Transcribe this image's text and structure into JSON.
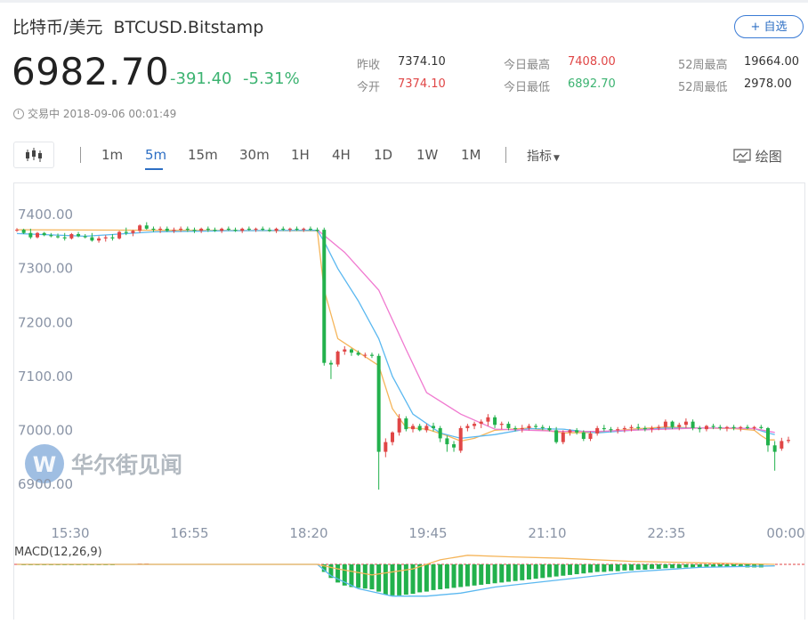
{
  "header": {
    "name": "比特币/美元",
    "symbol": "BTCUSD.Bitstamp",
    "add_label": "+ 自选"
  },
  "quote": {
    "price": "6982.70",
    "change": "-391.40",
    "change_pct": "-5.31%",
    "prev_close_label": "昨收",
    "prev_close": "7374.10",
    "open_label": "今开",
    "open": "7374.10",
    "high_label": "今日最高",
    "high": "7408.00",
    "low_label": "今日最低",
    "low": "6892.70",
    "w52_high_label": "52周最高",
    "w52_high": "19664.00",
    "w52_low_label": "52周最低",
    "w52_low": "2978.00",
    "status": "交易中 2018-09-06 00:01:49"
  },
  "toolbar": {
    "timeframes": [
      "1m",
      "5m",
      "15m",
      "30m",
      "1H",
      "4H",
      "1D",
      "1W",
      "1M"
    ],
    "active": "5m",
    "indicator_label": "指标",
    "draw_label": "绘图"
  },
  "colors": {
    "up": "#e04646",
    "down": "#22b14c",
    "accent": "#2d6fc4",
    "ma1": "#f5b55a",
    "ma2": "#5bb8f0",
    "ma3": "#f07ad0"
  },
  "watermark": "华尔街见闻",
  "chart_data": {
    "type": "candlestick",
    "x_tick_labels": [
      "15:30",
      "16:55",
      "18:20",
      "19:45",
      "21:10",
      "22:35",
      "00:00"
    ],
    "y_tick_labels": [
      "7400.00",
      "7300.00",
      "7200.00",
      "7100.00",
      "7000.00",
      "6900.00"
    ],
    "ylim": [
      6880,
      7430
    ],
    "ohlc": [
      [
        7371,
        7375,
        7368,
        7372
      ],
      [
        7372,
        7374,
        7364,
        7366
      ],
      [
        7366,
        7374,
        7355,
        7358
      ],
      [
        7358,
        7368,
        7356,
        7366
      ],
      [
        7366,
        7368,
        7360,
        7362
      ],
      [
        7362,
        7366,
        7358,
        7360
      ],
      [
        7360,
        7365,
        7356,
        7358
      ],
      [
        7358,
        7366,
        7352,
        7356
      ],
      [
        7356,
        7366,
        7354,
        7364
      ],
      [
        7364,
        7368,
        7358,
        7360
      ],
      [
        7360,
        7364,
        7356,
        7358
      ],
      [
        7358,
        7366,
        7350,
        7352
      ],
      [
        7352,
        7360,
        7348,
        7356
      ],
      [
        7356,
        7362,
        7350,
        7358
      ],
      [
        7358,
        7364,
        7352,
        7356
      ],
      [
        7356,
        7370,
        7354,
        7368
      ],
      [
        7368,
        7376,
        7362,
        7366
      ],
      [
        7366,
        7372,
        7360,
        7370
      ],
      [
        7370,
        7382,
        7366,
        7380
      ],
      [
        7380,
        7386,
        7372,
        7374
      ],
      [
        7374,
        7378,
        7368,
        7372
      ],
      [
        7372,
        7378,
        7366,
        7374
      ],
      [
        7374,
        7378,
        7368,
        7370
      ],
      [
        7370,
        7376,
        7366,
        7372
      ],
      [
        7372,
        7378,
        7368,
        7374
      ],
      [
        7374,
        7378,
        7368,
        7372
      ],
      [
        7372,
        7376,
        7366,
        7370
      ],
      [
        7370,
        7376,
        7366,
        7374
      ],
      [
        7374,
        7378,
        7368,
        7372
      ],
      [
        7372,
        7376,
        7368,
        7370
      ],
      [
        7370,
        7376,
        7366,
        7374
      ],
      [
        7374,
        7378,
        7370,
        7372
      ],
      [
        7372,
        7376,
        7368,
        7370
      ],
      [
        7370,
        7376,
        7366,
        7374
      ],
      [
        7374,
        7378,
        7370,
        7372
      ],
      [
        7372,
        7376,
        7368,
        7374
      ],
      [
        7374,
        7378,
        7370,
        7372
      ],
      [
        7372,
        7376,
        7368,
        7370
      ],
      [
        7370,
        7376,
        7366,
        7374
      ],
      [
        7374,
        7378,
        7370,
        7372
      ],
      [
        7372,
        7376,
        7368,
        7374
      ],
      [
        7374,
        7378,
        7370,
        7372
      ],
      [
        7372,
        7376,
        7368,
        7374
      ],
      [
        7374,
        7378,
        7370,
        7372
      ],
      [
        7372,
        7376,
        7368,
        7370
      ],
      [
        7372,
        7376,
        7120,
        7125
      ],
      [
        7125,
        7130,
        7095,
        7122
      ],
      [
        7122,
        7148,
        7118,
        7146
      ],
      [
        7146,
        7156,
        7140,
        7150
      ],
      [
        7150,
        7152,
        7138,
        7144
      ],
      [
        7144,
        7148,
        7138,
        7140
      ],
      [
        7140,
        7144,
        7134,
        7140
      ],
      [
        7140,
        7144,
        7134,
        7138
      ],
      [
        7138,
        7142,
        6890,
        6960
      ],
      [
        6960,
        6985,
        6950,
        6978
      ],
      [
        6978,
        6998,
        6972,
        6996
      ],
      [
        6996,
        7030,
        6990,
        7022
      ],
      [
        7022,
        7026,
        6998,
        7002
      ],
      [
        7002,
        7012,
        6996,
        7008
      ],
      [
        7008,
        7012,
        6998,
        7000
      ],
      [
        7000,
        7012,
        6996,
        7008
      ],
      [
        7008,
        7014,
        6998,
        7004
      ],
      [
        7004,
        7008,
        6978,
        6985
      ],
      [
        6985,
        6990,
        6960,
        6974
      ],
      [
        6974,
        6980,
        6960,
        6968
      ],
      [
        6962,
        7008,
        6958,
        7004
      ],
      [
        7004,
        7012,
        6998,
        7008
      ],
      [
        7008,
        7016,
        7002,
        7012
      ],
      [
        7012,
        7020,
        7004,
        7016
      ],
      [
        7016,
        7030,
        7008,
        7024
      ],
      [
        7024,
        7028,
        7004,
        7010
      ],
      [
        7010,
        7016,
        7002,
        7012
      ],
      [
        7012,
        7016,
        7000,
        7004
      ],
      [
        7004,
        7008,
        6998,
        7002
      ],
      [
        7002,
        7010,
        6996,
        7004
      ],
      [
        7004,
        7012,
        7000,
        7008
      ],
      [
        7008,
        7012,
        7002,
        7006
      ],
      [
        7006,
        7010,
        7000,
        7004
      ],
      [
        7004,
        7008,
        6998,
        7000
      ],
      [
        7000,
        7006,
        6975,
        6978
      ],
      [
        6978,
        7000,
        6974,
        6996
      ],
      [
        6996,
        7002,
        6990,
        7000
      ],
      [
        7000,
        7004,
        6992,
        6996
      ],
      [
        6996,
        7000,
        6980,
        6984
      ],
      [
        6984,
        6998,
        6980,
        6994
      ],
      [
        6994,
        7008,
        6990,
        7004
      ],
      [
        7004,
        7010,
        6998,
        7002
      ],
      [
        7002,
        7006,
        6996,
        7000
      ],
      [
        7000,
        7006,
        6994,
        7002
      ],
      [
        7002,
        7008,
        6996,
        7004
      ],
      [
        7004,
        7010,
        6998,
        7006
      ],
      [
        7006,
        7012,
        7000,
        7004
      ],
      [
        7004,
        7008,
        6998,
        7002
      ],
      [
        7002,
        7008,
        6996,
        7004
      ],
      [
        7004,
        7010,
        7000,
        7006
      ],
      [
        7006,
        7020,
        7000,
        7016
      ],
      [
        7016,
        7018,
        7002,
        7006
      ],
      [
        7006,
        7014,
        7000,
        7010
      ],
      [
        7010,
        7022,
        7004,
        7016
      ],
      [
        7016,
        7020,
        7000,
        7004
      ],
      [
        7004,
        7008,
        6996,
        7002
      ],
      [
        7002,
        7010,
        6998,
        7008
      ],
      [
        7008,
        7012,
        7002,
        7006
      ],
      [
        7006,
        7010,
        7000,
        7004
      ],
      [
        7004,
        7008,
        6998,
        7006
      ],
      [
        7006,
        7010,
        7000,
        7004
      ],
      [
        7004,
        7008,
        6998,
        7006
      ],
      [
        7006,
        7010,
        7002,
        7004
      ],
      [
        7004,
        7008,
        7000,
        7006
      ],
      [
        7006,
        7010,
        7002,
        7004
      ],
      [
        7004,
        7006,
        6960,
        6972
      ],
      [
        6972,
        6980,
        6925,
        6960
      ],
      [
        6966,
        6986,
        6962,
        6980
      ],
      [
        6980,
        6988,
        6976,
        6982
      ]
    ],
    "ma_series": [
      {
        "color": "#f5b55a",
        "values": [
          [
            0,
            7372
          ],
          [
            44,
            7370
          ],
          [
            45,
            7260
          ],
          [
            47,
            7170
          ],
          [
            50,
            7145
          ],
          [
            53,
            7120
          ],
          [
            55,
            7040
          ],
          [
            57,
            7005
          ],
          [
            60,
            7002
          ],
          [
            63,
            6990
          ],
          [
            65,
            6980
          ],
          [
            67,
            6985
          ],
          [
            70,
            7000
          ],
          [
            75,
            7004
          ],
          [
            80,
            6995
          ],
          [
            85,
            6996
          ],
          [
            90,
            7002
          ],
          [
            95,
            7006
          ],
          [
            100,
            7004
          ],
          [
            105,
            7003
          ],
          [
            108,
            7000
          ],
          [
            109,
            6990
          ],
          [
            110,
            6982
          ],
          [
            111,
            6982
          ]
        ]
      },
      {
        "color": "#5bb8f0",
        "values": [
          [
            0,
            7365
          ],
          [
            10,
            7360
          ],
          [
            20,
            7368
          ],
          [
            30,
            7370
          ],
          [
            44,
            7371
          ],
          [
            45,
            7350
          ],
          [
            47,
            7300
          ],
          [
            50,
            7240
          ],
          [
            53,
            7170
          ],
          [
            55,
            7100
          ],
          [
            58,
            7030
          ],
          [
            62,
            6995
          ],
          [
            65,
            6985
          ],
          [
            70,
            6992
          ],
          [
            75,
            7003
          ],
          [
            80,
            7002
          ],
          [
            85,
            6995
          ],
          [
            90,
            7000
          ],
          [
            95,
            7004
          ],
          [
            100,
            7004
          ],
          [
            105,
            7004
          ],
          [
            108,
            7003
          ],
          [
            110,
            6995
          ],
          [
            111,
            6992
          ]
        ]
      },
      {
        "color": "#f07ad0",
        "values": [
          [
            44,
            7372
          ],
          [
            48,
            7330
          ],
          [
            53,
            7260
          ],
          [
            57,
            7150
          ],
          [
            60,
            7070
          ],
          [
            65,
            7030
          ],
          [
            70,
            7002
          ],
          [
            75,
            7000
          ],
          [
            80,
            6998
          ],
          [
            85,
            6998
          ],
          [
            90,
            7000
          ],
          [
            95,
            7002
          ],
          [
            100,
            7004
          ],
          [
            105,
            7004
          ],
          [
            108,
            7003
          ],
          [
            111,
            6996
          ]
        ]
      }
    ],
    "macd": {
      "label": "MACD(12,26,9)",
      "hist": [
        0,
        -0.5,
        -1,
        -1,
        -1,
        -1,
        -1,
        -1,
        -1,
        -1,
        -1,
        -1,
        -1,
        -1,
        -1,
        0,
        0,
        0,
        1,
        1,
        0,
        0,
        0,
        0,
        0,
        0,
        0,
        0,
        0,
        0,
        0,
        0,
        0,
        0,
        0,
        0,
        0,
        0,
        0,
        0,
        0,
        0,
        0,
        0,
        0,
        -10,
        -18,
        -24,
        -28,
        -30,
        -31,
        -32,
        -33,
        -36,
        -40,
        -41,
        -41,
        -40,
        -39,
        -37,
        -36,
        -34,
        -33,
        -32,
        -31,
        -30,
        -29,
        -28,
        -27,
        -26,
        -25,
        -24,
        -23,
        -22,
        -21,
        -20,
        -19,
        -18,
        -17,
        -16,
        -15,
        -14,
        -13,
        -12,
        -11,
        -10,
        -10,
        -9,
        -9,
        -8,
        -8,
        -7,
        -7,
        -6,
        -6,
        -5,
        -5,
        -5,
        -4,
        -4,
        -4,
        -3,
        -3,
        -3,
        -3,
        -3,
        -3,
        -4,
        -4,
        -4
      ],
      "macd_line": [
        [
          0,
          0
        ],
        [
          44,
          0
        ],
        [
          46,
          -15
        ],
        [
          50,
          -32
        ],
        [
          55,
          -42
        ],
        [
          60,
          -42
        ],
        [
          65,
          -38
        ],
        [
          70,
          -30
        ],
        [
          80,
          -20
        ],
        [
          90,
          -10
        ],
        [
          100,
          -4
        ],
        [
          111,
          -2
        ]
      ],
      "signal_line": [
        [
          0,
          0
        ],
        [
          44,
          0
        ],
        [
          47,
          -6
        ],
        [
          52,
          -14
        ],
        [
          58,
          -6
        ],
        [
          62,
          6
        ],
        [
          66,
          12
        ],
        [
          72,
          10
        ],
        [
          80,
          8
        ],
        [
          90,
          4
        ],
        [
          100,
          2
        ],
        [
          111,
          0
        ]
      ]
    }
  }
}
